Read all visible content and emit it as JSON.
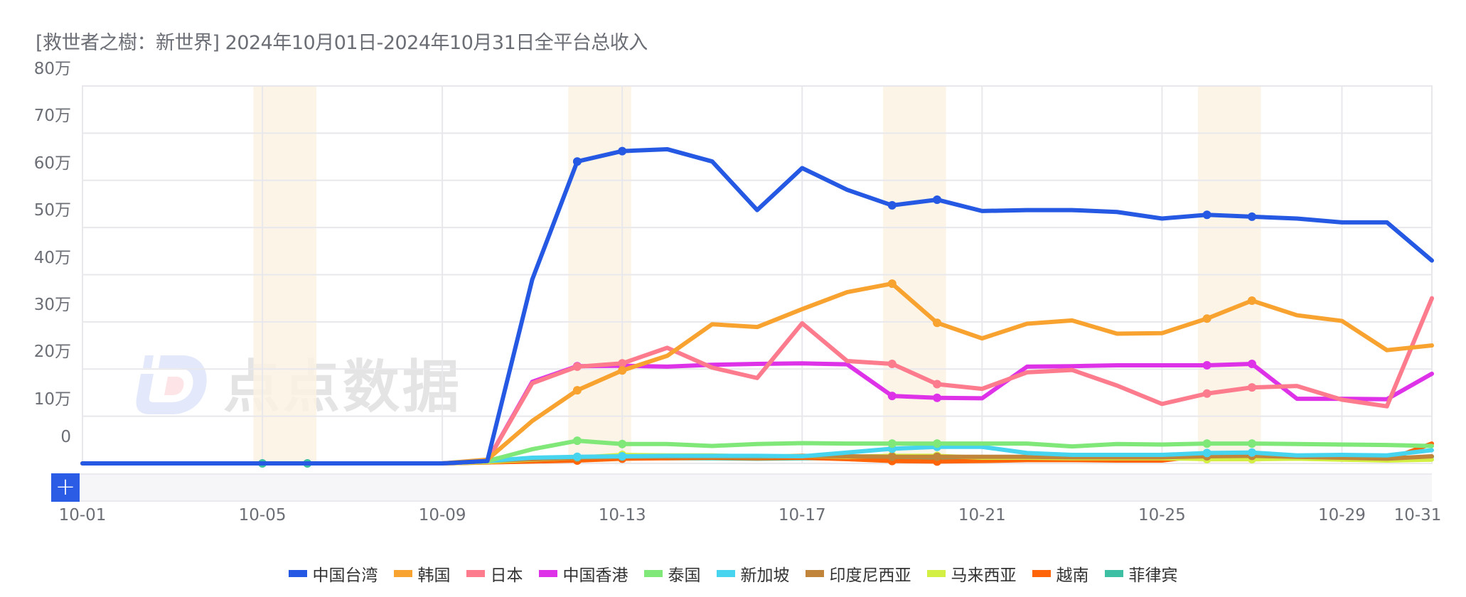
{
  "title": "[救世者之樹：新世界] 2024年10月01日-2024年10月31日全平台总收入",
  "watermark": "点点数据",
  "slider": {
    "add_label": "+"
  },
  "y_axis": {
    "ticks": [
      "80万",
      "70万",
      "60万",
      "50万",
      "40万",
      "30万",
      "20万",
      "10万",
      "0"
    ]
  },
  "x_axis": {
    "ticks": [
      "10-01",
      "10-05",
      "10-09",
      "10-13",
      "10-17",
      "10-21",
      "10-25",
      "10-29",
      "10-31"
    ]
  },
  "legend": [
    {
      "name": "中国台湾",
      "color": "#2558e3"
    },
    {
      "name": "韩国",
      "color": "#f8a22f"
    },
    {
      "name": "日本",
      "color": "#fc7b8d"
    },
    {
      "name": "中国香港",
      "color": "#de32e8"
    },
    {
      "name": "泰国",
      "color": "#7fe878"
    },
    {
      "name": "新加坡",
      "color": "#46d4ef"
    },
    {
      "name": "印度尼西亚",
      "color": "#c0843a"
    },
    {
      "name": "马来西亚",
      "color": "#d4ef43"
    },
    {
      "name": "越南",
      "color": "#ff6408"
    },
    {
      "name": "菲律宾",
      "color": "#3dbfa4"
    }
  ],
  "chart_data": {
    "type": "line",
    "title": "[救世者之樹：新世界] 2024年10月01日-2024年10月31日全平台总收入",
    "xlabel": "",
    "ylabel": "",
    "ylim": [
      0,
      800000
    ],
    "y_unit": "万",
    "grid": true,
    "legend_position": "bottom",
    "highlight_bands": [
      [
        "10-05",
        "10-06"
      ],
      [
        "10-12",
        "10-13"
      ],
      [
        "10-19",
        "10-20"
      ],
      [
        "10-26",
        "10-27"
      ]
    ],
    "x": [
      "10-01",
      "10-02",
      "10-03",
      "10-04",
      "10-05",
      "10-06",
      "10-07",
      "10-08",
      "10-09",
      "10-10",
      "10-11",
      "10-12",
      "10-13",
      "10-14",
      "10-15",
      "10-16",
      "10-17",
      "10-18",
      "10-19",
      "10-20",
      "10-21",
      "10-22",
      "10-23",
      "10-24",
      "10-25",
      "10-26",
      "10-27",
      "10-28",
      "10-29",
      "10-30",
      "10-31"
    ],
    "series": [
      {
        "name": "中国台湾",
        "color": "#2558e3",
        "values": [
          0,
          0,
          0,
          0,
          0,
          0,
          0,
          0,
          0,
          5000,
          390000,
          640000,
          662000,
          666000,
          640000,
          537000,
          626000,
          580000,
          547000,
          559000,
          535000,
          537000,
          537000,
          533000,
          519000,
          527000,
          523000,
          519000,
          511000,
          511000,
          430000
        ]
      },
      {
        "name": "韩国",
        "color": "#f8a22f",
        "values": [
          0,
          0,
          0,
          0,
          0,
          0,
          0,
          0,
          0,
          8000,
          90000,
          155000,
          197000,
          228000,
          295000,
          289000,
          327000,
          363000,
          381000,
          298000,
          265000,
          296000,
          303000,
          275000,
          276000,
          307000,
          345000,
          314000,
          302000,
          240000,
          250000
        ]
      },
      {
        "name": "日本",
        "color": "#fc7b8d",
        "values": [
          0,
          0,
          0,
          0,
          0,
          0,
          0,
          0,
          0,
          5000,
          170000,
          205000,
          212000,
          245000,
          203000,
          181000,
          297000,
          217000,
          211000,
          168000,
          158000,
          193000,
          198000,
          165000,
          126000,
          148000,
          161000,
          164000,
          135000,
          121000,
          350000
        ]
      },
      {
        "name": "中国香港",
        "color": "#de32e8",
        "values": [
          0,
          0,
          0,
          0,
          0,
          0,
          0,
          0,
          0,
          5000,
          173000,
          206000,
          207000,
          205000,
          209000,
          211000,
          212000,
          210000,
          143000,
          139000,
          138000,
          205000,
          206000,
          208000,
          208000,
          208000,
          211000,
          137000,
          137000,
          136000,
          190000
        ]
      },
      {
        "name": "泰国",
        "color": "#7fe878",
        "values": [
          0,
          0,
          0,
          0,
          0,
          0,
          0,
          0,
          0,
          5000,
          30000,
          48000,
          41000,
          41000,
          37000,
          41000,
          43000,
          42000,
          42000,
          42000,
          42000,
          42000,
          36000,
          41000,
          40000,
          42000,
          42000,
          41000,
          40000,
          39000,
          37000
        ]
      },
      {
        "name": "新加坡",
        "color": "#46d4ef",
        "values": [
          0,
          0,
          0,
          0,
          0,
          0,
          0,
          0,
          0,
          5000,
          12000,
          14000,
          15000,
          16000,
          16000,
          16000,
          15000,
          23000,
          31000,
          35000,
          35000,
          22000,
          18000,
          18000,
          18000,
          22000,
          23000,
          17000,
          18000,
          17000,
          28000
        ]
      },
      {
        "name": "印度尼西亚",
        "color": "#c0843a",
        "values": [
          0,
          0,
          0,
          0,
          0,
          0,
          0,
          0,
          0,
          5000,
          9000,
          12000,
          14000,
          14000,
          14000,
          13000,
          16000,
          15000,
          14000,
          14000,
          14000,
          14000,
          13000,
          13000,
          13000,
          15000,
          16000,
          14000,
          12000,
          10000,
          15000
        ]
      },
      {
        "name": "马来西亚",
        "color": "#d4ef43",
        "values": [
          0,
          0,
          0,
          0,
          0,
          0,
          0,
          0,
          0,
          3000,
          8000,
          12000,
          18000,
          17000,
          17000,
          14000,
          16000,
          14000,
          16000,
          16000,
          12000,
          12000,
          11000,
          11000,
          11000,
          9000,
          9000,
          10000,
          8000,
          6000,
          8000
        ]
      },
      {
        "name": "越南",
        "color": "#ff6408",
        "values": [
          0,
          0,
          0,
          0,
          0,
          0,
          0,
          0,
          0,
          2000,
          4000,
          6000,
          10000,
          11000,
          12000,
          11000,
          12000,
          9000,
          5000,
          4000,
          5000,
          7000,
          7000,
          6000,
          6000,
          18000,
          19000,
          15000,
          10000,
          7000,
          42000
        ]
      },
      {
        "name": "菲律宾",
        "color": "#3dbfa4",
        "values": [
          0,
          0,
          0,
          0,
          0,
          0,
          0,
          0,
          0,
          2000,
          7000,
          11000,
          13000,
          11000,
          11000,
          10000,
          11000,
          11000,
          10000,
          10000,
          10000,
          10000,
          9000,
          9000,
          10000,
          11000,
          11000,
          10000,
          9000,
          8000,
          14000
        ]
      }
    ]
  }
}
